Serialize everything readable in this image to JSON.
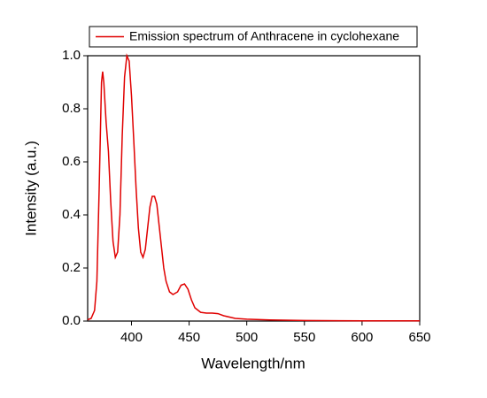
{
  "chart_data": {
    "type": "line",
    "x_label": "Wavelength/nm",
    "y_label": "Intensity (a.u.)",
    "xlim": [
      362,
      650
    ],
    "xticks": [
      400,
      450,
      500,
      550,
      600,
      650
    ],
    "ylim": [
      0,
      1
    ],
    "yticks": [
      {
        "value": 0,
        "label": "0.0"
      },
      0.2,
      0.4,
      0.6,
      0.8,
      {
        "value": 1,
        "label": "1.0"
      }
    ],
    "legend": "top",
    "grid": false,
    "x": [
      362,
      365,
      368,
      370,
      372,
      374,
      375,
      376,
      378,
      380,
      382,
      384,
      386,
      388,
      390,
      392,
      394,
      396,
      398,
      400,
      402,
      404,
      406,
      408,
      410,
      412,
      414,
      416,
      418,
      420,
      422,
      424,
      426,
      428,
      430,
      433,
      436,
      440,
      443,
      446,
      449,
      452,
      455,
      460,
      465,
      470,
      475,
      480,
      490,
      500,
      520,
      550,
      600,
      650
    ],
    "series": [
      {
        "name": "Emission spectrum of Anthracene in cyclohexane",
        "color": "#e00000",
        "values": [
          0.005,
          0.01,
          0.04,
          0.15,
          0.5,
          0.9,
          0.94,
          0.9,
          0.75,
          0.64,
          0.45,
          0.3,
          0.24,
          0.26,
          0.4,
          0.7,
          0.92,
          1.0,
          0.98,
          0.85,
          0.68,
          0.5,
          0.35,
          0.26,
          0.24,
          0.27,
          0.35,
          0.43,
          0.47,
          0.47,
          0.44,
          0.36,
          0.28,
          0.2,
          0.15,
          0.11,
          0.1,
          0.11,
          0.135,
          0.14,
          0.12,
          0.08,
          0.05,
          0.033,
          0.03,
          0.03,
          0.028,
          0.02,
          0.01,
          0.007,
          0.004,
          0.002,
          0.001,
          0.001
        ]
      }
    ]
  }
}
